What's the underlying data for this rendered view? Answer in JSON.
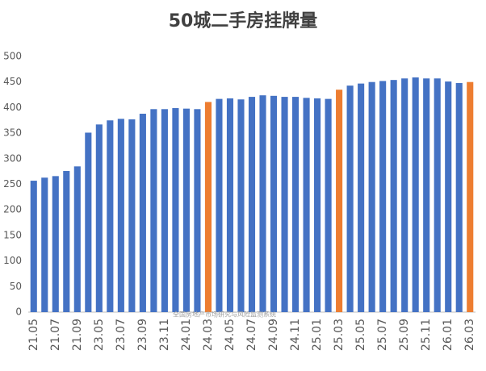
{
  "chart_data": {
    "type": "bar",
    "title": "50城二手房挂牌量",
    "watermark": "全国房地产市场研究与风险监测系统",
    "categories": [
      "21.05",
      null,
      "21.07",
      null,
      "21.09",
      null,
      "23.05",
      null,
      "23.07",
      null,
      "23.09",
      null,
      "23.11",
      null,
      "24.01",
      null,
      "24.03",
      null,
      "24.05",
      null,
      "24.07",
      null,
      "24.09",
      null,
      "24.11",
      null,
      "25.01",
      null,
      "25.03",
      null,
      "25.05",
      null,
      "25.07",
      null,
      "25.09",
      null,
      "25.11",
      null,
      "26.01",
      null,
      "26.03"
    ],
    "values": [
      257,
      263,
      266,
      276,
      285,
      351,
      367,
      375,
      378,
      377,
      388,
      397,
      397,
      399,
      398,
      397,
      411,
      417,
      418,
      416,
      421,
      424,
      423,
      421,
      421,
      419,
      418,
      417,
      435,
      443,
      447,
      450,
      452,
      454,
      457,
      459,
      457,
      457,
      451,
      448,
      450
    ],
    "colors": [
      "#4472c4",
      "#4472c4",
      "#4472c4",
      "#4472c4",
      "#4472c4",
      "#4472c4",
      "#4472c4",
      "#4472c4",
      "#4472c4",
      "#4472c4",
      "#4472c4",
      "#4472c4",
      "#4472c4",
      "#4472c4",
      "#4472c4",
      "#4472c4",
      "#ed7d31",
      "#4472c4",
      "#4472c4",
      "#4472c4",
      "#4472c4",
      "#4472c4",
      "#4472c4",
      "#4472c4",
      "#4472c4",
      "#4472c4",
      "#4472c4",
      "#4472c4",
      "#ed7d31",
      "#4472c4",
      "#4472c4",
      "#4472c4",
      "#4472c4",
      "#4472c4",
      "#4472c4",
      "#4472c4",
      "#4472c4",
      "#4472c4",
      "#4472c4",
      "#4472c4",
      "#ed7d31"
    ],
    "ylim": [
      0,
      500
    ],
    "yticks": [
      0,
      50,
      100,
      150,
      200,
      250,
      300,
      350,
      400,
      450,
      500
    ],
    "grid": false
  }
}
